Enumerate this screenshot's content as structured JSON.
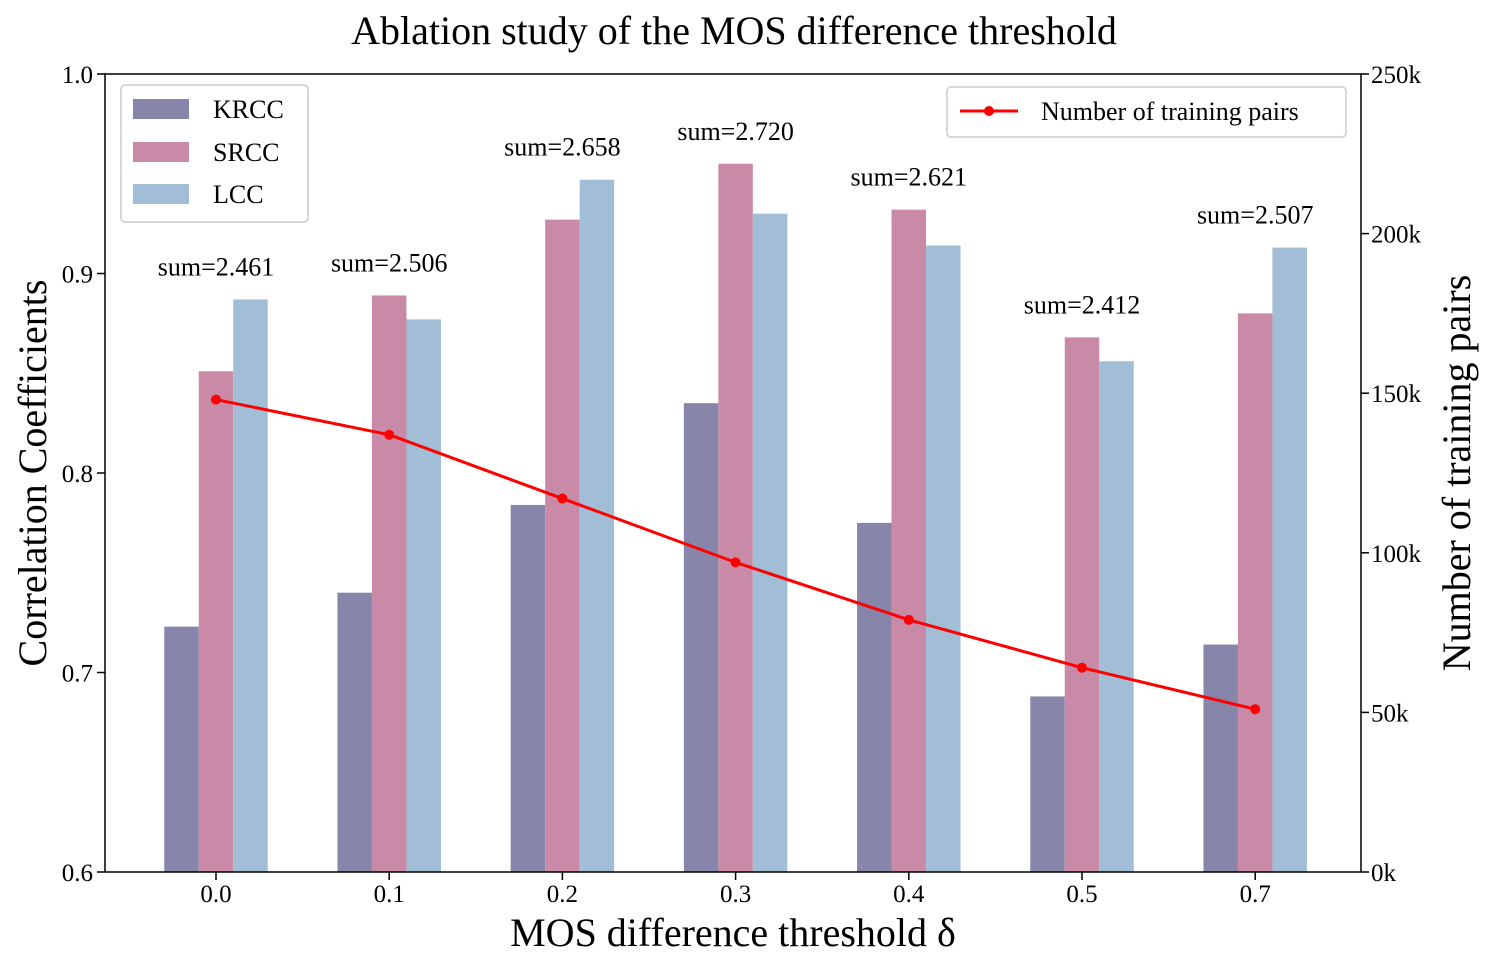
{
  "chart_data": {
    "type": "bar",
    "title": "Ablation study of the MOS difference threshold",
    "xlabel": "MOS difference threshold δ",
    "ylabel": "Correlation Coefficients",
    "y2label": "Number of training pairs",
    "categories": [
      "0.0",
      "0.1",
      "0.2",
      "0.3",
      "0.4",
      "0.5",
      "0.7"
    ],
    "ylim": [
      0.6,
      1.0
    ],
    "yticks": [
      0.6,
      0.7,
      0.8,
      0.9,
      1.0
    ],
    "ytick_labels": [
      "0.6",
      "0.7",
      "0.8",
      "0.9",
      "1.0"
    ],
    "y2lim": [
      0,
      250000
    ],
    "y2ticks": [
      0,
      50000,
      100000,
      150000,
      200000,
      250000
    ],
    "y2tick_labels": [
      "0k",
      "50k",
      "100k",
      "150k",
      "200k",
      "250k"
    ],
    "series": [
      {
        "name": "KRCC",
        "color": "#8785a9",
        "values": [
          0.723,
          0.74,
          0.784,
          0.835,
          0.775,
          0.688,
          0.714
        ]
      },
      {
        "name": "SRCC",
        "color": "#c98aa8",
        "values": [
          0.851,
          0.889,
          0.927,
          0.955,
          0.932,
          0.868,
          0.88
        ]
      },
      {
        "name": "LCC",
        "color": "#a2bdd6",
        "values": [
          0.887,
          0.877,
          0.947,
          0.93,
          0.914,
          0.856,
          0.913
        ]
      }
    ],
    "line_series": {
      "name": "Number of training pairs",
      "color": "#ff0000",
      "axis": "right",
      "values": [
        148000,
        137000,
        117000,
        97000,
        79000,
        64000,
        51000
      ]
    },
    "annotations": [
      "sum=2.461",
      "sum=2.506",
      "sum=2.658",
      "sum=2.720",
      "sum=2.621",
      "sum=2.412",
      "sum=2.507"
    ],
    "legend_left_position": "upper-left",
    "legend_right_position": "upper-right",
    "grid": false
  }
}
